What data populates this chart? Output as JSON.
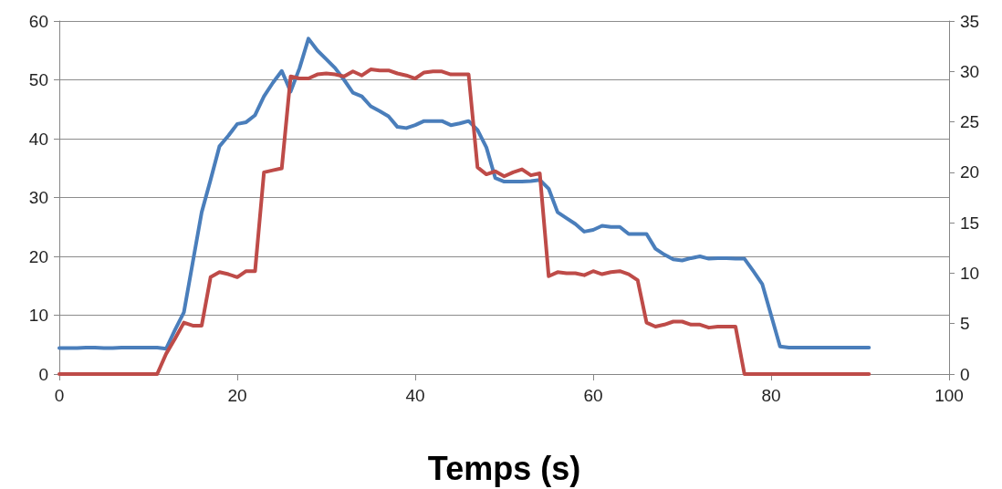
{
  "chart_data": {
    "type": "line",
    "xlabel": "Temps (s)",
    "x": [
      0,
      1,
      2,
      3,
      4,
      5,
      6,
      7,
      8,
      9,
      10,
      11,
      12,
      13,
      14,
      15,
      16,
      17,
      18,
      19,
      20,
      21,
      22,
      23,
      24,
      25,
      26,
      27,
      28,
      29,
      30,
      31,
      32,
      33,
      34,
      35,
      36,
      37,
      38,
      39,
      40,
      41,
      42,
      43,
      44,
      45,
      46,
      47,
      48,
      49,
      50,
      51,
      52,
      53,
      54,
      55,
      56,
      57,
      58,
      59,
      60,
      61,
      62,
      63,
      64,
      65,
      66,
      67,
      68,
      69,
      70,
      71,
      72,
      73,
      74,
      75,
      76,
      77,
      78,
      79,
      80,
      81,
      82,
      83,
      84,
      85,
      86,
      87,
      88,
      89,
      90,
      91
    ],
    "series": [
      {
        "color": "#4a7ebb",
        "values": [
          4.4,
          4.4,
          4.4,
          4.5,
          4.5,
          4.4,
          4.4,
          4.5,
          4.5,
          4.5,
          4.5,
          4.5,
          4.3,
          7.5,
          10.5,
          19,
          27.5,
          33,
          38.7,
          40.5,
          42.5,
          42.8,
          44,
          47.2,
          49.5,
          51.5,
          48,
          52,
          57,
          55,
          53.5,
          52,
          50,
          47.8,
          47.2,
          45.5,
          44.7,
          43.8,
          42,
          41.8,
          42.3,
          43,
          43,
          43,
          42.3,
          42.6,
          43,
          41.5,
          38.5,
          33.3,
          32.7,
          32.7,
          32.7,
          32.8,
          33,
          31.5,
          27.5,
          26.5,
          25.5,
          24.2,
          24.5,
          25.2,
          25,
          25,
          23.8,
          23.8,
          23.8,
          21.3,
          20.3,
          19.5,
          19.3,
          19.7,
          20,
          19.6,
          19.7,
          19.7,
          19.6,
          19.6,
          17.5,
          15.3,
          10,
          4.7,
          4.5,
          4.5,
          4.5,
          4.5,
          4.5,
          4.5,
          4.5,
          4.5,
          4.5,
          4.5
        ]
      },
      {
        "color": "#be4b48",
        "axis": "y2",
        "values": [
          0,
          0,
          0,
          0,
          0,
          0,
          0,
          0,
          0,
          0,
          0,
          0,
          2,
          3.5,
          5.1,
          4.8,
          4.8,
          9.6,
          10.1,
          9.9,
          9.6,
          10.2,
          10.2,
          20,
          20.2,
          20.4,
          29.5,
          29.3,
          29.3,
          29.7,
          29.8,
          29.7,
          29.5,
          30,
          29.6,
          30.2,
          30.1,
          30.1,
          29.8,
          29.6,
          29.3,
          29.9,
          30,
          30,
          29.7,
          29.7,
          29.7,
          20.5,
          19.8,
          20.1,
          19.6,
          20,
          20.3,
          19.7,
          19.9,
          9.7,
          10.1,
          10,
          10,
          9.8,
          10.2,
          9.9,
          10.1,
          10.2,
          9.9,
          9.3,
          5.1,
          4.7,
          4.9,
          5.2,
          5.2,
          4.9,
          4.9,
          4.6,
          4.7,
          4.7,
          4.7,
          0,
          0,
          0,
          0,
          0,
          0,
          0,
          0,
          0,
          0,
          0,
          0,
          0,
          0,
          0
        ]
      }
    ],
    "xlim": [
      0,
      100
    ],
    "xticks": [
      0,
      20,
      40,
      60,
      80,
      100
    ],
    "ylim": [
      0,
      60
    ],
    "yticks": [
      0,
      10,
      20,
      30,
      40,
      50,
      60
    ],
    "y2lim": [
      0,
      35
    ],
    "y2ticks": [
      0,
      5,
      10,
      15,
      20,
      25,
      30,
      35
    ],
    "grid": "y",
    "marker": "none",
    "line_style": "solid"
  }
}
